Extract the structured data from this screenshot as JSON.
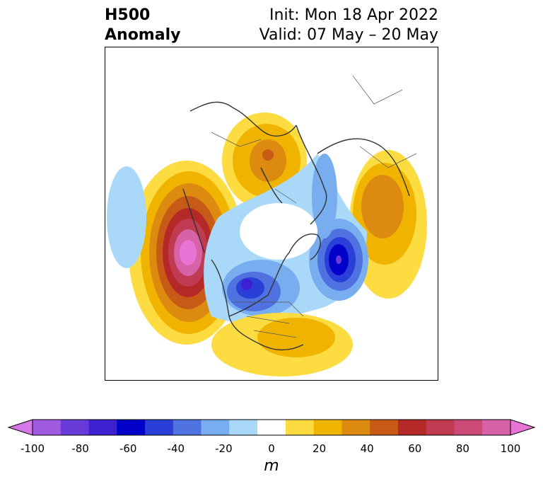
{
  "header": {
    "title_line1": "H500",
    "title_line2": "Anomaly",
    "init_text": "Init: Mon 18 Apr 2022",
    "valid_text": "Valid: 07 May – 20 May"
  },
  "colorbar": {
    "unit": "m",
    "ticks": [
      "-100",
      "-80",
      "-60",
      "-40",
      "-20",
      "0",
      "20",
      "40",
      "60",
      "80",
      "100"
    ],
    "colors": [
      "#d678e8",
      "#a05ae0",
      "#6a3ad8",
      "#3f20d0",
      "#0000c8",
      "#2a3ed8",
      "#4f72e0",
      "#78aef0",
      "#aad8f8",
      "#ffffff",
      "#fcdc40",
      "#f0b400",
      "#dc8a10",
      "#c85a18",
      "#b42828",
      "#c03a52",
      "#cc4a78",
      "#d862a8",
      "#e874d6"
    ]
  },
  "map": {
    "projection": "north-polar-stereographic",
    "variable": "500 hPa geopotential height anomaly"
  }
}
